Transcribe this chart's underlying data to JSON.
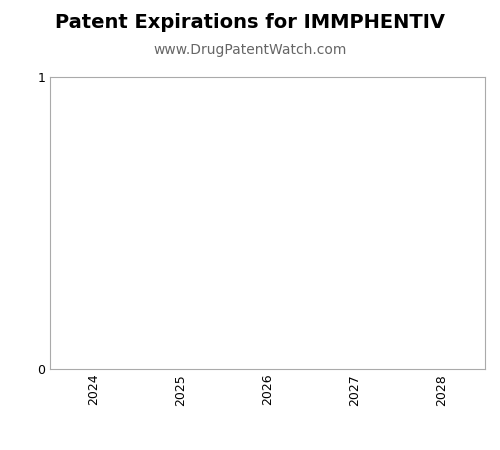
{
  "title": "Patent Expirations for IMMPHENTIV",
  "subtitle": "www.DrugPatentWatch.com",
  "title_fontsize": 14,
  "subtitle_fontsize": 10,
  "title_fontweight": "bold",
  "xlim": [
    2023.5,
    2028.5
  ],
  "ylim": [
    0,
    1
  ],
  "xticks": [
    2024,
    2025,
    2026,
    2027,
    2028
  ],
  "yticks": [
    0,
    1
  ],
  "background_color": "#ffffff",
  "axes_facecolor": "#ffffff",
  "tick_label_fontsize": 9,
  "spine_color": "#aaaaaa",
  "subtitle_color": "#666666"
}
